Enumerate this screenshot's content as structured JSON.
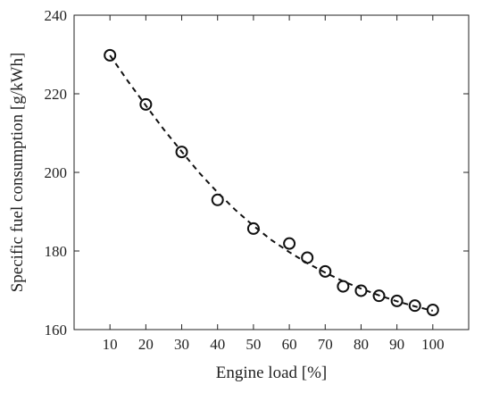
{
  "chart_data": {
    "type": "scatter",
    "title": "",
    "xlabel": "Engine load [%]",
    "ylabel": "Specific fuel consumption [g/kWh]",
    "xlim": [
      0,
      110
    ],
    "ylim": [
      160,
      240
    ],
    "x_ticks": [
      10,
      20,
      30,
      40,
      50,
      60,
      70,
      80,
      90,
      100
    ],
    "y_ticks": [
      160,
      180,
      200,
      220,
      240
    ],
    "grid": false,
    "legend": "none",
    "series": [
      {
        "marker": "open-circle",
        "x": [
          10,
          20,
          30,
          40,
          50,
          60,
          65,
          70,
          75,
          80,
          85,
          90,
          95,
          100
        ],
        "y": [
          229.8,
          217.3,
          205.2,
          193.0,
          185.7,
          181.9,
          178.3,
          174.8,
          171.0,
          169.9,
          168.6,
          167.3,
          166.1,
          165.0
        ]
      }
    ],
    "fit_line": {
      "style": "dashed",
      "x": [
        10,
        15,
        20,
        25,
        30,
        35,
        40,
        45,
        50,
        55,
        60,
        65,
        70,
        75,
        80,
        85,
        90,
        95,
        100
      ],
      "y": [
        229.8,
        223.2,
        217.0,
        210.9,
        205.3,
        199.8,
        194.9,
        190.4,
        186.4,
        182.8,
        179.7,
        176.9,
        174.5,
        172.3,
        170.4,
        168.7,
        167.2,
        165.9,
        164.8
      ]
    }
  }
}
